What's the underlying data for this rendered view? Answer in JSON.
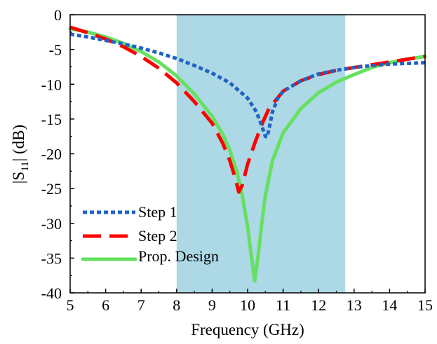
{
  "chart_data": {
    "type": "line",
    "xlabel": "Frequency (GHz)",
    "ylabel": {
      "prefix": "|S",
      "sub": "11",
      "suffix": "| (dB)"
    },
    "xlim": [
      5,
      15
    ],
    "ylim": [
      -40,
      0
    ],
    "xticks": [
      5,
      6,
      7,
      8,
      9,
      10,
      11,
      12,
      13,
      14,
      15
    ],
    "yticks": [
      0,
      -5,
      -10,
      -15,
      -20,
      -25,
      -30,
      -35,
      -40
    ],
    "grid": false,
    "legend_position": "bottom-left",
    "highlight_band": {
      "x_start": 8.0,
      "x_end": 12.75,
      "color": "#add8e6"
    },
    "series": [
      {
        "name": "Step 1",
        "color": "#1f63c4",
        "style": "dotted",
        "points": [
          [
            5.0,
            -2.8
          ],
          [
            5.5,
            -3.2
          ],
          [
            6.0,
            -3.7
          ],
          [
            6.5,
            -4.2
          ],
          [
            7.0,
            -4.8
          ],
          [
            7.5,
            -5.5
          ],
          [
            8.0,
            -6.3
          ],
          [
            8.5,
            -7.3
          ],
          [
            9.0,
            -8.4
          ],
          [
            9.5,
            -9.8
          ],
          [
            10.0,
            -12.0
          ],
          [
            10.25,
            -14.0
          ],
          [
            10.4,
            -16.0
          ],
          [
            10.5,
            -17.5
          ],
          [
            10.55,
            -17.6
          ],
          [
            10.6,
            -16.5
          ],
          [
            10.7,
            -14.0
          ],
          [
            10.85,
            -12.0
          ],
          [
            11.0,
            -11.0
          ],
          [
            11.5,
            -9.5
          ],
          [
            12.0,
            -8.5
          ],
          [
            12.5,
            -8.0
          ],
          [
            13.0,
            -7.6
          ],
          [
            13.5,
            -7.3
          ],
          [
            14.0,
            -7.1
          ],
          [
            14.5,
            -7.0
          ],
          [
            15.0,
            -6.9
          ]
        ]
      },
      {
        "name": "Step 2",
        "color": "#ff0000",
        "style": "dashed",
        "points": [
          [
            5.0,
            -1.8
          ],
          [
            5.5,
            -2.6
          ],
          [
            6.0,
            -3.5
          ],
          [
            6.5,
            -4.6
          ],
          [
            7.0,
            -6.0
          ],
          [
            7.5,
            -7.7
          ],
          [
            8.0,
            -9.8
          ],
          [
            8.5,
            -12.5
          ],
          [
            9.0,
            -15.6
          ],
          [
            9.3,
            -18.5
          ],
          [
            9.5,
            -21.0
          ],
          [
            9.65,
            -23.5
          ],
          [
            9.75,
            -25.5
          ],
          [
            9.85,
            -24.5
          ],
          [
            10.0,
            -21.5
          ],
          [
            10.2,
            -18.5
          ],
          [
            10.4,
            -15.8
          ],
          [
            10.6,
            -13.5
          ],
          [
            11.0,
            -11.0
          ],
          [
            11.5,
            -9.5
          ],
          [
            12.0,
            -8.6
          ],
          [
            12.5,
            -8.0
          ],
          [
            13.0,
            -7.6
          ],
          [
            13.5,
            -7.2
          ],
          [
            14.0,
            -6.8
          ],
          [
            14.5,
            -6.4
          ],
          [
            15.0,
            -6.0
          ]
        ]
      },
      {
        "name": "Prop. Design",
        "color": "#66e060",
        "style": "solid",
        "points": [
          [
            5.0,
            -2.0
          ],
          [
            5.5,
            -2.5
          ],
          [
            6.0,
            -3.2
          ],
          [
            6.5,
            -4.1
          ],
          [
            7.0,
            -5.3
          ],
          [
            7.5,
            -6.8
          ],
          [
            8.0,
            -8.8
          ],
          [
            8.5,
            -11.4
          ],
          [
            9.0,
            -14.6
          ],
          [
            9.3,
            -17.2
          ],
          [
            9.5,
            -19.5
          ],
          [
            9.7,
            -22.6
          ],
          [
            9.85,
            -26.0
          ],
          [
            10.0,
            -30.5
          ],
          [
            10.1,
            -34.5
          ],
          [
            10.2,
            -38.3
          ],
          [
            10.3,
            -34.5
          ],
          [
            10.4,
            -30.0
          ],
          [
            10.5,
            -26.0
          ],
          [
            10.7,
            -21.0
          ],
          [
            11.0,
            -17.0
          ],
          [
            11.5,
            -13.5
          ],
          [
            12.0,
            -11.2
          ],
          [
            12.5,
            -9.7
          ],
          [
            13.0,
            -8.6
          ],
          [
            13.5,
            -7.6
          ],
          [
            14.0,
            -6.9
          ],
          [
            14.5,
            -6.4
          ],
          [
            15.0,
            -6.0
          ]
        ]
      }
    ]
  }
}
